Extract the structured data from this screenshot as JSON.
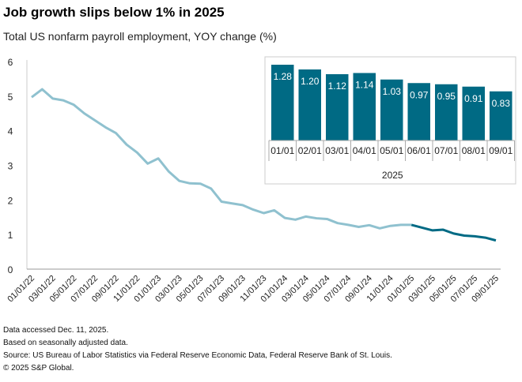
{
  "title": "Job growth slips below 1% in 2025",
  "subtitle": "Total US nonfarm payroll employment, YOY change (%)",
  "footnotes": [
    "Data accessed Dec. 11, 2025.",
    "Based on seasonally adjusted data.",
    "Source: US Bureau of Labor Statistics via Federal Reserve Economic Data, Federal Reserve Bank of St. Louis.",
    "© 2025 S&P Global."
  ],
  "colors": {
    "history": "#8fc1cf",
    "recent": "#006a84",
    "bar": "#006a84"
  },
  "chart_data": [
    {
      "type": "line",
      "title": "",
      "xlabel": "",
      "ylabel": "",
      "ylim": [
        0,
        6
      ],
      "yticks": [
        "0",
        "1",
        "2",
        "3",
        "4",
        "5",
        "6"
      ],
      "xticks": [
        "01/01/22",
        "03/01/22",
        "05/01/22",
        "07/01/22",
        "09/01/22",
        "11/01/22",
        "01/01/23",
        "03/01/23",
        "05/01/23",
        "07/01/23",
        "09/01/23",
        "11/01/23",
        "01/01/24",
        "03/01/24",
        "05/01/24",
        "07/01/24",
        "09/01/24",
        "11/01/24",
        "01/01/25",
        "03/01/25",
        "05/01/25",
        "07/01/25",
        "09/01/25"
      ],
      "series": [
        {
          "name": "YOY change",
          "start": "01/01/22",
          "frequency": "monthly",
          "values": [
            4.97,
            5.2,
            4.93,
            4.88,
            4.75,
            4.5,
            4.3,
            4.1,
            3.93,
            3.6,
            3.37,
            3.05,
            3.2,
            2.82,
            2.55,
            2.48,
            2.47,
            2.33,
            1.95,
            1.9,
            1.85,
            1.72,
            1.62,
            1.7,
            1.48,
            1.43,
            1.52,
            1.47,
            1.45,
            1.33,
            1.28,
            1.22,
            1.27,
            1.18,
            1.25,
            1.28,
            1.28,
            1.2,
            1.12,
            1.14,
            1.03,
            0.97,
            0.95,
            0.91,
            0.83
          ],
          "highlight_from": "01/01/25"
        }
      ]
    },
    {
      "type": "bar",
      "title": "",
      "xlabel": "2025",
      "categories": [
        "01/01",
        "02/01",
        "03/01",
        "04/01",
        "05/01",
        "06/01",
        "07/01",
        "08/01",
        "09/01"
      ],
      "values": [
        1.28,
        1.2,
        1.12,
        1.14,
        1.03,
        0.97,
        0.95,
        0.91,
        0.83
      ],
      "labels": [
        "1.28",
        "1.20",
        "1.12",
        "1.14",
        "1.03",
        "0.97",
        "0.95",
        "0.91",
        "0.83"
      ]
    }
  ]
}
